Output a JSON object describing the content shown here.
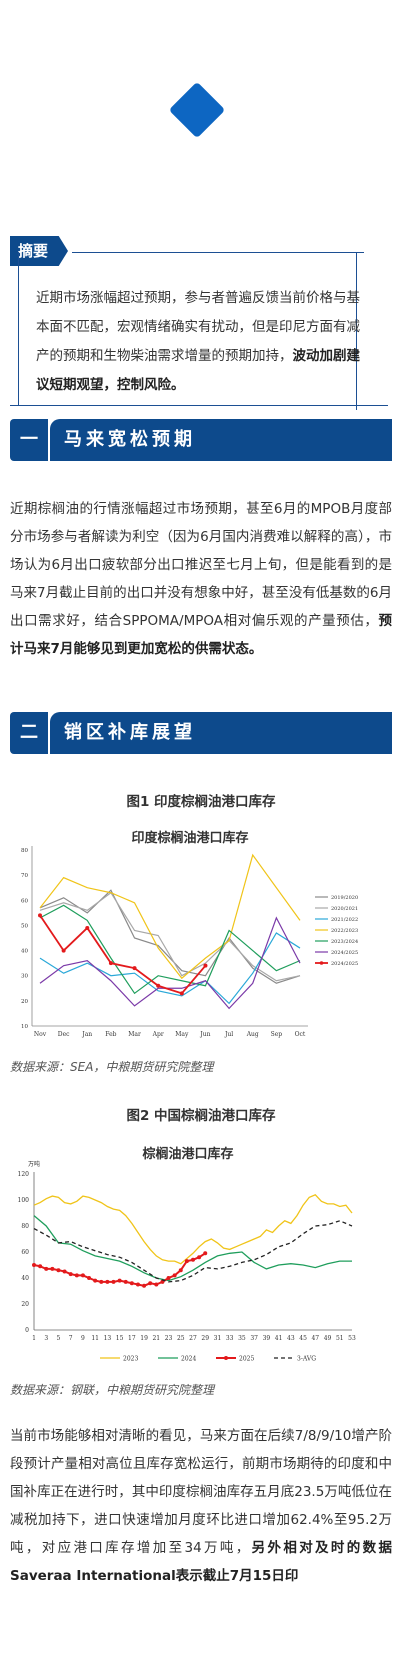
{
  "summary": {
    "tag": "摘要",
    "text_plain": "近期市场涨幅超过预期，参与者普遍反馈当前价格与基本面不匹配，宏观情绪确实有扰动，但是印尼方面有减产的预期和生物柴油需求增量的预期加持，",
    "text_bold": "波动加剧建议短期观望，控制风险。"
  },
  "sections": [
    {
      "num": "一",
      "title": "马来宽松预期"
    },
    {
      "num": "二",
      "title": "销区补库展望"
    }
  ],
  "para1": {
    "plain": "近期棕榈油的行情涨幅超过市场预期，甚至6月的MPOB月度部分市场参与者解读为利空（因为6月国内消费难以解释的高），市场认为6月出口疲软部分出口推迟至七月上旬，但是能看到的是马来7月截止目前的出口并没有想象中好，甚至没有低基数的6月出口需求好，结合SPPOMA/MPOA相对偏乐观的产量预估，",
    "bold": "预计马来7月能够见到更加宽松的供需状态。"
  },
  "fig1": {
    "caption": "图1 印度棕榈油港口库存",
    "source": "数据来源：SEA，中粮期货研究院整理"
  },
  "fig2": {
    "caption": "图2 中国棕榈油港口库存",
    "source": "数据来源：钢联，中粮期货研究院整理"
  },
  "para2": {
    "plain": "当前市场能够相对清晰的看见，马来方面在后续7/8/9/10增产阶段预计产量相对高位且库存宽松运行，前期市场期待的印度和中国补库正在进行时，其中印度棕榈油库存五月底23.5万吨低位在减税加持下，进口快速增加月度环比进口增加62.4%至95.2万吨，对应港口库存增加至34万吨，",
    "bold": "另外相对及时的数据Saveraa International表示截止7月15日印"
  },
  "chart_data": [
    {
      "type": "line",
      "title": "印度棕榈油港口库存",
      "categories": [
        "Nov",
        "Dec",
        "Jan",
        "Feb",
        "Mar",
        "Apr",
        "May",
        "Jun",
        "Jul",
        "Aug",
        "Sep",
        "Oct"
      ],
      "ylim": [
        10,
        80
      ],
      "yticks": [
        "10",
        "20",
        "30",
        "40",
        "50",
        "60",
        "70",
        "80"
      ],
      "legend_position": "right",
      "series": [
        {
          "name": "2019/2020",
          "color": "#8a8a8a",
          "values": [
            57,
            61,
            55,
            64,
            45,
            42,
            32,
            30,
            45,
            33,
            27,
            30
          ]
        },
        {
          "name": "2020/2021",
          "color": "#a8a8a8",
          "values": [
            56,
            59,
            56,
            63,
            48,
            46,
            30,
            35,
            44,
            34,
            28,
            30
          ]
        },
        {
          "name": "2021/2022",
          "color": "#2aa8d8",
          "values": [
            37,
            31,
            35,
            30,
            31,
            24,
            22,
            28,
            19,
            31,
            47,
            41
          ]
        },
        {
          "name": "2022/2023",
          "color": "#f0c419",
          "values": [
            57,
            69,
            65,
            63,
            59,
            41,
            29,
            37,
            44,
            78,
            65,
            52
          ]
        },
        {
          "name": "2023/2024",
          "color": "#1f9e5c",
          "values": [
            53,
            58,
            52,
            37,
            23,
            30,
            28,
            26,
            48,
            40,
            32,
            36
          ]
        },
        {
          "name": "2024/2025",
          "color": "#7b3aa8",
          "values": [
            27,
            34,
            36,
            28,
            18,
            25,
            25,
            28,
            17,
            27,
            53,
            35
          ]
        },
        {
          "name": "2024/2025",
          "color": "#e31a1c",
          "values": [
            54,
            40,
            49,
            35,
            33,
            26,
            23,
            34,
            null,
            null,
            null,
            null
          ]
        }
      ]
    },
    {
      "type": "line",
      "title": "棕榈油港口库存",
      "ylabel": "万吨",
      "ylim": [
        0,
        120
      ],
      "yticks": [
        "0",
        "20",
        "40",
        "60",
        "80",
        "100",
        "120"
      ],
      "xticks": [
        "1",
        "3",
        "5",
        "7",
        "9",
        "11",
        "13",
        "15",
        "17",
        "19",
        "21",
        "23",
        "25",
        "27",
        "29",
        "31",
        "33",
        "35",
        "37",
        "39",
        "41",
        "43",
        "45",
        "47",
        "49",
        "51",
        "53"
      ],
      "legend_position": "bottom",
      "series": [
        {
          "name": "2023",
          "color": "#f0c419",
          "x": [
            1,
            2,
            3,
            4,
            5,
            6,
            7,
            8,
            9,
            10,
            11,
            12,
            13,
            14,
            15,
            16,
            17,
            18,
            19,
            20,
            21,
            22,
            23,
            24,
            25,
            26,
            27,
            28,
            29,
            30,
            31,
            32,
            33,
            34,
            35,
            36,
            37,
            38,
            39,
            40,
            41,
            42,
            43,
            44,
            45,
            46,
            47,
            48,
            49,
            50,
            51,
            52,
            53
          ],
          "values": [
            96,
            98,
            101,
            103,
            102,
            98,
            97,
            99,
            103,
            102,
            100,
            98,
            95,
            93,
            92,
            88,
            82,
            75,
            68,
            62,
            57,
            54,
            53,
            53,
            51,
            55,
            59,
            64,
            68,
            70,
            67,
            63,
            62,
            64,
            66,
            68,
            70,
            72,
            77,
            75,
            80,
            84,
            82,
            88,
            96,
            102,
            104,
            99,
            97,
            97,
            95,
            96,
            90
          ]
        },
        {
          "name": "2024",
          "color": "#1f9e5c",
          "x": [
            1,
            3,
            5,
            7,
            9,
            11,
            13,
            15,
            17,
            19,
            21,
            23,
            25,
            27,
            29,
            31,
            33,
            35,
            37,
            39,
            41,
            43,
            45,
            47,
            49,
            51,
            53
          ],
          "values": [
            88,
            80,
            67,
            66,
            61,
            57,
            55,
            53,
            49,
            44,
            40,
            38,
            41,
            46,
            52,
            57,
            59,
            60,
            52,
            47,
            50,
            51,
            50,
            48,
            51,
            53,
            53
          ]
        },
        {
          "name": "2025",
          "color": "#e31a1c",
          "x": [
            1,
            2,
            3,
            4,
            5,
            6,
            7,
            8,
            9,
            10,
            11,
            12,
            13,
            14,
            15,
            16,
            17,
            18,
            19,
            20,
            21,
            22,
            23,
            24,
            25,
            26,
            27,
            28,
            29
          ],
          "values": [
            50,
            49,
            47,
            47,
            46,
            45,
            43,
            42,
            42,
            40,
            38,
            37,
            37,
            37,
            38,
            37,
            36,
            35,
            34,
            36,
            35,
            37,
            40,
            42,
            46,
            53,
            54,
            56,
            59
          ]
        },
        {
          "name": "3-AVG",
          "color": "#222222",
          "dashed": true,
          "x": [
            1,
            3,
            5,
            7,
            9,
            11,
            13,
            15,
            17,
            19,
            21,
            23,
            25,
            27,
            29,
            31,
            33,
            35,
            37,
            39,
            41,
            43,
            45,
            47,
            49,
            51,
            53
          ],
          "values": [
            78,
            73,
            67,
            68,
            64,
            61,
            58,
            56,
            52,
            46,
            40,
            37,
            38,
            42,
            48,
            47,
            49,
            52,
            54,
            58,
            64,
            67,
            74,
            80,
            81,
            84,
            80
          ]
        }
      ]
    }
  ]
}
